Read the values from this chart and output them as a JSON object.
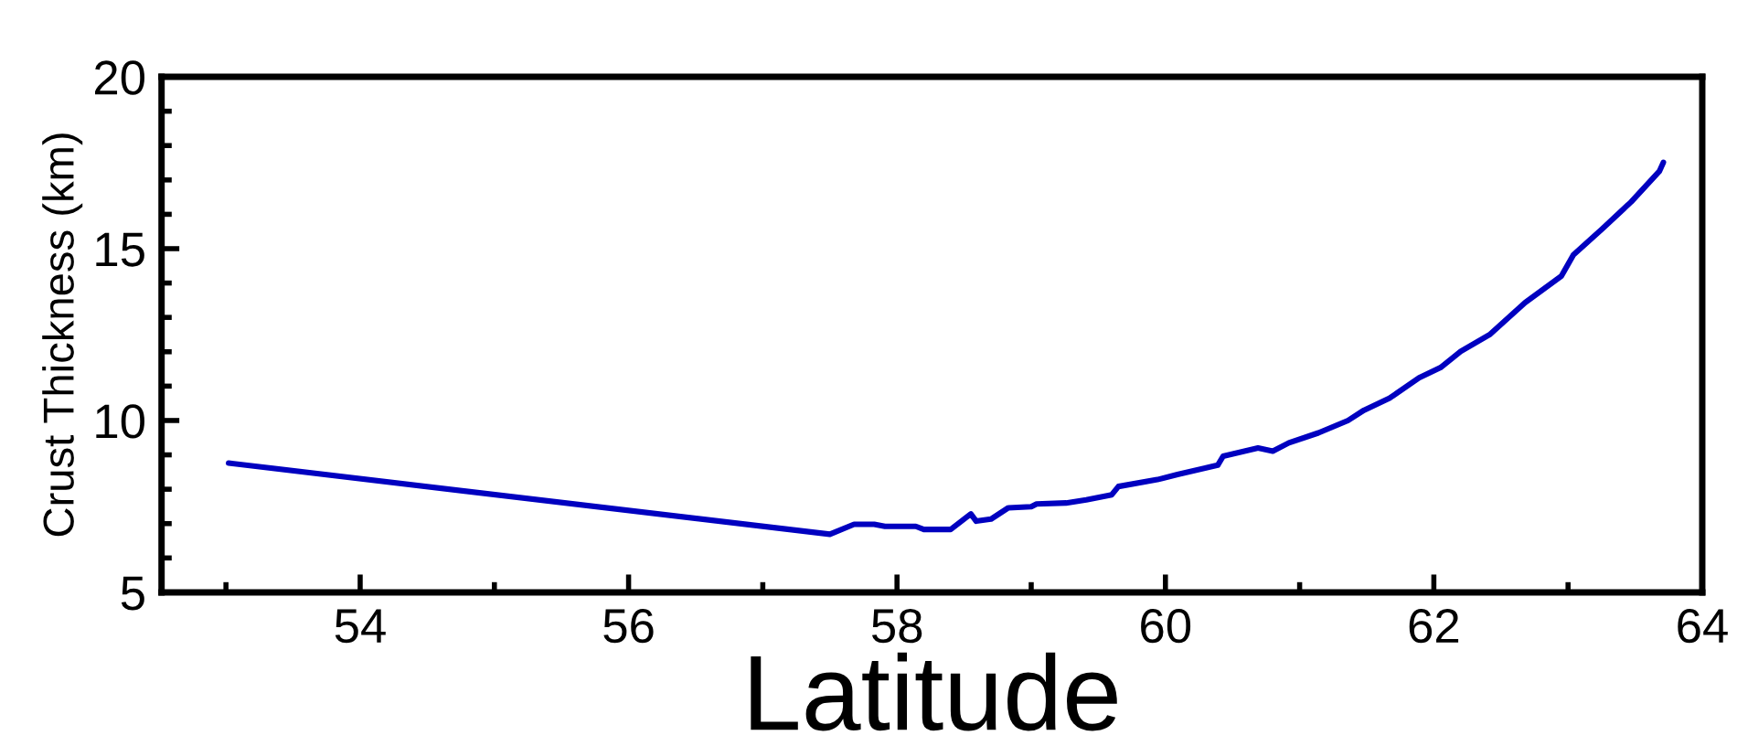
{
  "chart_data": {
    "type": "line",
    "xlabel": "Latitude",
    "ylabel": "Crust Thickness (km)",
    "xlim": [
      52.52,
      64
    ],
    "xticks": [
      54,
      56,
      58,
      60,
      62,
      64
    ],
    "ylim": [
      5,
      20
    ],
    "yticks": [
      5,
      10,
      15,
      20
    ],
    "grid": false,
    "marker": "none",
    "line_style": "solid",
    "series": [
      {
        "color": "#0000c0",
        "x": [
          53.02,
          57.5,
          57.68,
          57.83,
          57.91,
          58.14,
          58.2,
          58.4,
          58.55,
          58.59,
          58.7,
          58.83,
          59.0,
          59.04,
          59.26,
          59.41,
          59.6,
          59.65,
          59.94,
          60.09,
          60.39,
          60.43,
          60.69,
          60.8,
          60.92,
          61.14,
          61.36,
          61.48,
          61.67,
          61.89,
          62.05,
          62.2,
          62.42,
          62.68,
          62.95,
          63.04,
          63.25,
          63.47,
          63.68,
          63.71
        ],
        "values": [
          8.76,
          6.69,
          6.98,
          6.98,
          6.92,
          6.92,
          6.83,
          6.83,
          7.28,
          7.07,
          7.13,
          7.46,
          7.49,
          7.57,
          7.6,
          7.69,
          7.84,
          8.08,
          8.28,
          8.43,
          8.7,
          8.96,
          9.2,
          9.11,
          9.35,
          9.64,
          10.0,
          10.3,
          10.65,
          11.24,
          11.54,
          12.01,
          12.51,
          13.43,
          14.2,
          14.82,
          15.56,
          16.36,
          17.25,
          17.51
        ]
      }
    ]
  }
}
